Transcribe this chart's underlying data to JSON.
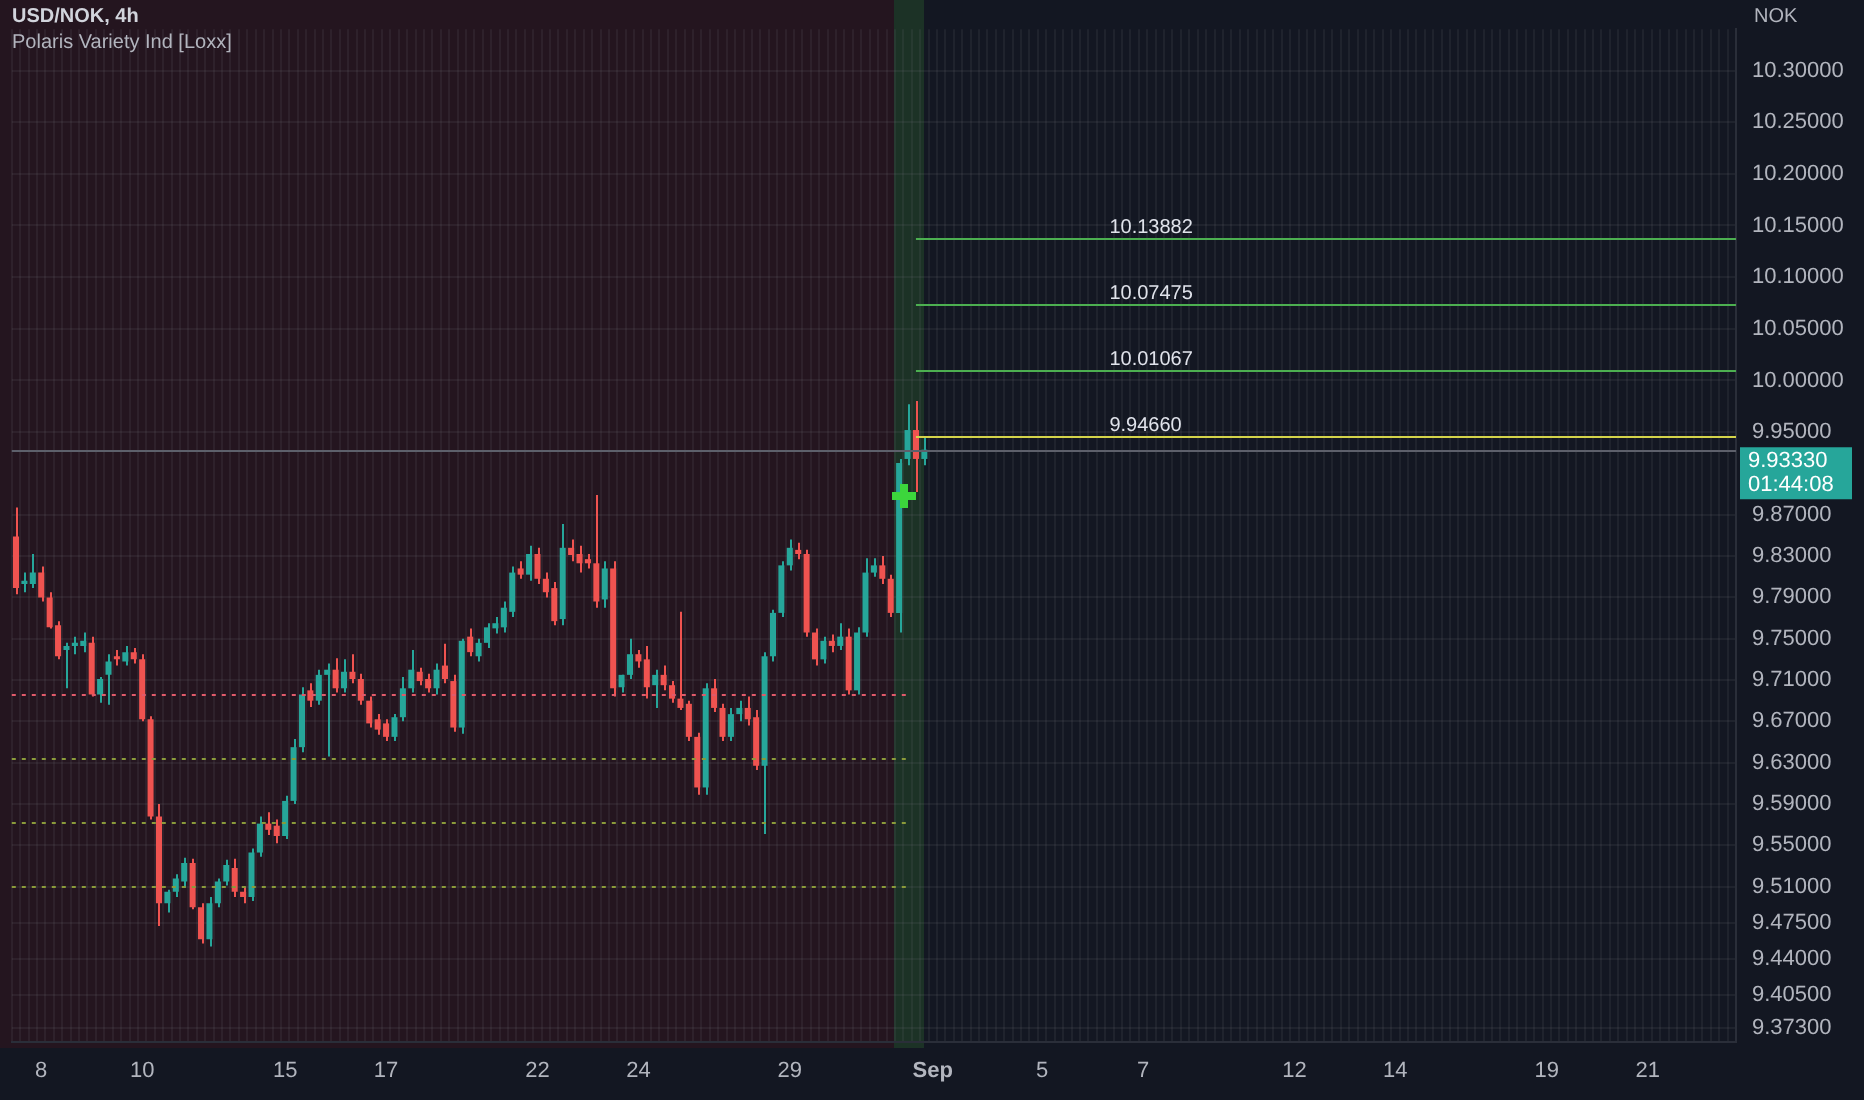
{
  "chart_data": {
    "type": "candlestick",
    "title": "USD/NOK, 4h",
    "subtitle": "Polaris Variety Ind [Loxx]",
    "ylabel": "NOK",
    "categories": [
      null,
      null,
      null,
      "8",
      null,
      null,
      null,
      null,
      null,
      null,
      null,
      null,
      null,
      null,
      null,
      "10",
      null,
      null,
      null,
      null,
      null,
      null,
      null,
      null,
      null,
      null,
      null,
      null,
      null,
      null,
      null,
      null,
      "15",
      null,
      null,
      null,
      null,
      null,
      null,
      null,
      null,
      null,
      null,
      null,
      "17",
      null,
      null,
      null,
      null,
      null,
      null,
      null,
      null,
      null,
      null,
      null,
      null,
      null,
      null,
      null,
      null,
      null,
      "22",
      null,
      null,
      null,
      null,
      null,
      null,
      null,
      null,
      null,
      null,
      null,
      "24",
      null,
      null,
      null,
      null,
      null,
      null,
      null,
      null,
      null,
      null,
      null,
      null,
      null,
      null,
      null,
      null,
      null,
      "29",
      null,
      null,
      null,
      null,
      null,
      null,
      null,
      null,
      null,
      null,
      null,
      null,
      null,
      null,
      null,
      null,
      "Sep",
      null,
      null,
      null,
      null,
      null,
      null,
      null,
      null,
      null,
      null,
      null,
      null,
      "5",
      null,
      null,
      null,
      null,
      null,
      null,
      null,
      null,
      null,
      null,
      null,
      "7",
      null,
      null,
      null,
      null,
      null,
      null,
      null,
      null,
      null,
      null,
      null,
      null,
      null,
      null,
      null,
      null,
      null,
      "12",
      null,
      null,
      null,
      null,
      null,
      null,
      null,
      null,
      null,
      null,
      null,
      "14",
      null,
      null,
      null,
      null,
      null,
      null,
      null,
      null,
      null,
      null,
      null,
      null,
      null,
      null,
      null,
      null,
      null,
      "19",
      null,
      null,
      null,
      null,
      null,
      null,
      null,
      null,
      null,
      null,
      null,
      "21",
      null,
      null,
      null,
      null,
      null,
      null,
      null,
      null,
      null,
      null
    ],
    "ohlc": [
      [
        9.849,
        9.877,
        9.793,
        9.799
      ],
      [
        9.803,
        9.814,
        9.795,
        9.806
      ],
      [
        9.803,
        9.832,
        9.799,
        9.814
      ],
      [
        9.814,
        9.82,
        9.786,
        9.79
      ],
      [
        9.79,
        9.795,
        9.76,
        9.761
      ],
      [
        9.763,
        9.767,
        9.73,
        9.733
      ],
      [
        9.739,
        9.746,
        9.702,
        9.743
      ],
      [
        9.743,
        9.752,
        9.735,
        9.746
      ],
      [
        9.743,
        9.756,
        9.737,
        9.748
      ],
      [
        9.746,
        9.752,
        9.694,
        9.696
      ],
      [
        9.696,
        9.713,
        9.688,
        9.711
      ],
      [
        9.715,
        9.735,
        9.686,
        9.728
      ],
      [
        9.733,
        9.739,
        9.724,
        9.73
      ],
      [
        9.728,
        9.743,
        9.724,
        9.737
      ],
      [
        9.737,
        9.741,
        9.726,
        9.73
      ],
      [
        9.73,
        9.735,
        9.67,
        9.672
      ],
      [
        9.672,
        9.675,
        9.575,
        9.578
      ],
      [
        9.578,
        9.59,
        9.472,
        9.494
      ],
      [
        9.494,
        9.507,
        9.485,
        9.505
      ],
      [
        9.505,
        9.522,
        9.5,
        9.518
      ],
      [
        9.515,
        9.538,
        9.509,
        9.533
      ],
      [
        9.533,
        9.537,
        9.488,
        9.49
      ],
      [
        9.49,
        9.494,
        9.455,
        9.459
      ],
      [
        9.459,
        9.5,
        9.452,
        9.494
      ],
      [
        9.494,
        9.518,
        9.49,
        9.515
      ],
      [
        9.515,
        9.536,
        9.511,
        9.531
      ],
      [
        9.528,
        9.537,
        9.5,
        9.505
      ],
      [
        9.505,
        9.51,
        9.494,
        9.5
      ],
      [
        9.5,
        9.547,
        9.496,
        9.543
      ],
      [
        9.543,
        9.578,
        9.539,
        9.571
      ],
      [
        9.571,
        9.582,
        9.56,
        9.565
      ],
      [
        9.569,
        9.575,
        9.552,
        9.559
      ],
      [
        9.559,
        9.598,
        9.556,
        9.593
      ],
      [
        9.593,
        9.653,
        9.59,
        9.645
      ],
      [
        9.645,
        9.703,
        9.64,
        9.696
      ],
      [
        9.7,
        9.707,
        9.684,
        9.69
      ],
      [
        9.69,
        9.72,
        9.686,
        9.715
      ],
      [
        9.715,
        9.726,
        9.636,
        9.72
      ],
      [
        9.72,
        9.731,
        9.698,
        9.702
      ],
      [
        9.702,
        9.73,
        9.698,
        9.718
      ],
      [
        9.718,
        9.735,
        9.707,
        9.711
      ],
      [
        9.711,
        9.716,
        9.686,
        9.69
      ],
      [
        9.69,
        9.694,
        9.664,
        9.668
      ],
      [
        9.672,
        9.677,
        9.657,
        9.662
      ],
      [
        9.668,
        9.672,
        9.651,
        9.655
      ],
      [
        9.655,
        9.677,
        9.651,
        9.674
      ],
      [
        9.674,
        9.713,
        9.67,
        9.702
      ],
      [
        9.702,
        9.739,
        9.698,
        9.72
      ],
      [
        9.718,
        9.722,
        9.705,
        9.709
      ],
      [
        9.711,
        9.716,
        9.698,
        9.702
      ],
      [
        9.702,
        9.726,
        9.696,
        9.72
      ],
      [
        9.724,
        9.745,
        9.707,
        9.711
      ],
      [
        9.709,
        9.715,
        9.66,
        9.664
      ],
      [
        9.664,
        9.75,
        9.658,
        9.748
      ],
      [
        9.752,
        9.76,
        9.733,
        9.737
      ],
      [
        9.733,
        9.75,
        9.728,
        9.746
      ],
      [
        9.746,
        9.765,
        9.741,
        9.761
      ],
      [
        9.76,
        9.771,
        9.755,
        9.765
      ],
      [
        9.761,
        9.786,
        9.756,
        9.78
      ],
      [
        9.776,
        9.82,
        9.771,
        9.814
      ],
      [
        9.818,
        9.825,
        9.808,
        9.812
      ],
      [
        9.812,
        9.84,
        9.806,
        9.832
      ],
      [
        9.832,
        9.838,
        9.803,
        9.808
      ],
      [
        9.808,
        9.814,
        9.79,
        9.795
      ],
      [
        9.799,
        9.805,
        9.763,
        9.767
      ],
      [
        9.769,
        9.861,
        9.763,
        9.838
      ],
      [
        9.838,
        9.846,
        9.825,
        9.831
      ],
      [
        9.832,
        9.84,
        9.814,
        9.823
      ],
      [
        9.827,
        9.832,
        9.818,
        9.823
      ],
      [
        9.823,
        9.889,
        9.78,
        9.786
      ],
      [
        9.788,
        9.825,
        9.78,
        9.818
      ],
      [
        9.818,
        9.825,
        9.694,
        9.702
      ],
      [
        9.703,
        9.715,
        9.698,
        9.715
      ],
      [
        9.715,
        9.75,
        9.711,
        9.735
      ],
      [
        9.735,
        9.739,
        9.722,
        9.728
      ],
      [
        9.73,
        9.743,
        9.692,
        9.703
      ],
      [
        9.705,
        9.72,
        9.683,
        9.715
      ],
      [
        9.715,
        9.724,
        9.7,
        9.705
      ],
      [
        9.705,
        9.709,
        9.688,
        9.692
      ],
      [
        9.692,
        9.776,
        9.681,
        9.683
      ],
      [
        9.687,
        9.69,
        9.651,
        9.655
      ],
      [
        9.655,
        9.659,
        9.599,
        9.606
      ],
      [
        9.606,
        9.707,
        9.599,
        9.702
      ],
      [
        9.702,
        9.711,
        9.679,
        9.683
      ],
      [
        9.683,
        9.687,
        9.651,
        9.655
      ],
      [
        9.655,
        9.683,
        9.651,
        9.677
      ],
      [
        9.677,
        9.69,
        9.67,
        9.683
      ],
      [
        9.683,
        9.694,
        9.666,
        9.672
      ],
      [
        9.674,
        9.681,
        9.623,
        9.627
      ],
      [
        9.627,
        9.737,
        9.561,
        9.733
      ],
      [
        9.733,
        9.778,
        9.728,
        9.775
      ],
      [
        9.775,
        9.825,
        9.771,
        9.821
      ],
      [
        9.821,
        9.846,
        9.816,
        9.838
      ],
      [
        9.836,
        9.843,
        9.827,
        9.832
      ],
      [
        9.832,
        9.836,
        9.752,
        9.756
      ],
      [
        9.756,
        9.76,
        9.724,
        9.73
      ],
      [
        9.73,
        9.752,
        9.726,
        9.748
      ],
      [
        9.748,
        9.754,
        9.737,
        9.743
      ],
      [
        9.743,
        9.765,
        9.739,
        9.752
      ],
      [
        9.752,
        9.76,
        9.696,
        9.7
      ],
      [
        9.7,
        9.761,
        9.696,
        9.756
      ],
      [
        9.756,
        9.828,
        9.752,
        9.814
      ],
      [
        9.814,
        9.828,
        9.81,
        9.821
      ],
      [
        9.821,
        9.83,
        9.803,
        9.808
      ],
      [
        9.808,
        9.812,
        9.771,
        9.775
      ],
      [
        9.775,
        9.924,
        9.756,
        9.92
      ],
      [
        9.924,
        9.977,
        9.918,
        9.952
      ],
      [
        9.952,
        9.98,
        9.892,
        9.924
      ],
      [
        9.924,
        9.946,
        9.918,
        9.933
      ],
      null,
      null,
      null,
      null,
      null,
      null,
      null,
      null,
      null,
      null,
      null,
      null,
      null,
      null,
      null,
      null,
      null,
      null,
      null,
      null,
      null,
      null,
      null,
      null,
      null,
      null,
      null,
      null,
      null,
      null,
      null,
      null,
      null,
      null,
      null,
      null,
      null,
      null,
      null,
      null,
      null,
      null,
      null,
      null,
      null,
      null,
      null,
      null,
      null,
      null,
      null,
      null,
      null,
      null,
      null,
      null,
      null,
      null,
      null,
      null,
      null,
      null,
      null,
      null,
      null,
      null,
      null,
      null,
      null,
      null,
      null,
      null,
      null,
      null,
      null,
      null,
      null,
      null,
      null,
      null,
      null,
      null,
      null,
      null,
      null,
      null,
      null,
      null,
      null,
      null,
      null,
      null,
      null,
      null,
      null,
      null
    ],
    "colors": [
      "#ef5350",
      "#26a69a",
      "#26a69a",
      "#ef5350",
      "#ef5350",
      "#ef5350",
      "#26a69a",
      "#26a69a",
      "#26a69a",
      "#ef5350",
      "#26a69a",
      "#26a69a",
      "#ef5350",
      "#26a69a",
      "#ef5350",
      "#ef5350",
      "#ef5350",
      "#ef5350",
      "#26a69a",
      "#26a69a",
      "#26a69a",
      "#ef5350",
      "#ef5350",
      "#26a69a",
      "#26a69a",
      "#26a69a",
      "#ef5350",
      "#ef5350",
      "#26a69a",
      "#26a69a",
      "#ef5350",
      "#ef5350",
      "#26a69a",
      "#26a69a",
      "#26a69a",
      "#ef5350",
      "#26a69a",
      "#26a69a",
      "#ef5350",
      "#26a69a",
      "#ef5350",
      "#ef5350",
      "#ef5350",
      "#ef5350",
      "#ef5350",
      "#26a69a",
      "#26a69a",
      "#26a69a",
      "#ef5350",
      "#ef5350",
      "#26a69a",
      "#ef5350",
      "#ef5350",
      "#26a69a",
      "#ef5350",
      "#26a69a",
      "#26a69a",
      "#26a69a",
      "#26a69a",
      "#26a69a",
      "#ef5350",
      "#26a69a",
      "#ef5350",
      "#ef5350",
      "#ef5350",
      "#26a69a",
      "#ef5350",
      "#ef5350",
      "#ef5350",
      "#ef5350",
      "#26a69a",
      "#ef5350",
      "#26a69a",
      "#26a69a",
      "#ef5350",
      "#ef5350",
      "#26a69a",
      "#ef5350",
      "#ef5350",
      "#ef5350",
      "#ef5350",
      "#ef5350",
      "#26a69a",
      "#ef5350",
      "#ef5350",
      "#26a69a",
      "#26a69a",
      "#ef5350",
      "#ef5350",
      "#26a69a",
      "#26a69a",
      "#26a69a",
      "#26a69a",
      "#ef5350",
      "#ef5350",
      "#ef5350",
      "#26a69a",
      "#ef5350",
      "#26a69a",
      "#ef5350",
      "#26a69a",
      "#26a69a",
      "#26a69a",
      "#ef5350",
      "#ef5350",
      "#26a69a",
      "#26a69a",
      "#ef5350",
      "#26a69a",
      null,
      null,
      null,
      null,
      null,
      null,
      null,
      null,
      null,
      null,
      null,
      null,
      null,
      null,
      null,
      null,
      null,
      null,
      null,
      null,
      null,
      null,
      null,
      null,
      null,
      null,
      null,
      null,
      null,
      null,
      null,
      null,
      null,
      null,
      null,
      null,
      null,
      null,
      null,
      null,
      null,
      null,
      null,
      null,
      null,
      null,
      null,
      null,
      null,
      null,
      null,
      null,
      null,
      null,
      null,
      null,
      null,
      null,
      null,
      null,
      null,
      null,
      null,
      null,
      null,
      null,
      null,
      null,
      null,
      null,
      null,
      null,
      null,
      null,
      null,
      null,
      null,
      null,
      null,
      null,
      null,
      null,
      null,
      null,
      null,
      null,
      null,
      null,
      null,
      null,
      null,
      null,
      null,
      null,
      null,
      null
    ],
    "ylim": [
      9.36,
      10.34
    ],
    "yticks": [
      {
        "value": 9.373,
        "label": "9.37300"
      },
      {
        "value": 9.405,
        "label": "9.40500"
      },
      {
        "value": 9.44,
        "label": "9.44000"
      },
      {
        "value": 9.475,
        "label": "9.47500"
      },
      {
        "value": 9.51,
        "label": "9.51000"
      },
      {
        "value": 9.55,
        "label": "9.55000"
      },
      {
        "value": 9.59,
        "label": "9.59000"
      },
      {
        "value": 9.63,
        "label": "9.63000"
      },
      {
        "value": 9.67,
        "label": "9.67000"
      },
      {
        "value": 9.71,
        "label": "9.71000"
      },
      {
        "value": 9.75,
        "label": "9.75000"
      },
      {
        "value": 9.79,
        "label": "9.79000"
      },
      {
        "value": 9.83,
        "label": "9.83000"
      },
      {
        "value": 9.87,
        "label": "9.87000"
      },
      {
        "value": 9.95,
        "label": "9.95000"
      },
      {
        "value": 10.0,
        "label": "10.00000"
      },
      {
        "value": 10.05,
        "label": "10.05000"
      },
      {
        "value": 10.1,
        "label": "10.10000"
      },
      {
        "value": 10.15,
        "label": "10.15000"
      },
      {
        "value": 10.2,
        "label": "10.20000"
      },
      {
        "value": 10.25,
        "label": "10.25000"
      },
      {
        "value": 10.3,
        "label": "10.30000"
      }
    ],
    "grid": true,
    "ref_lines": [
      {
        "axis": "y",
        "value": 10.13882,
        "label": "10.13882",
        "color": "#4caf50",
        "line_style": "solid"
      },
      {
        "axis": "y",
        "value": 10.07475,
        "label": "10.07475",
        "color": "#4caf50",
        "line_style": "solid"
      },
      {
        "axis": "y",
        "value": 10.01067,
        "label": "10.01067",
        "color": "#4caf50",
        "line_style": "solid"
      },
      {
        "axis": "y",
        "value": 9.9466,
        "label": "9.94660",
        "color": "#d4d44a",
        "line_style": "solid"
      },
      {
        "axis": "y",
        "value": 9.9333,
        "label": "9.93330",
        "color": "#5d606b"
      },
      {
        "axis": "y",
        "value": 9.696,
        "color": "#e05a6a",
        "line_style": "dotted"
      },
      {
        "axis": "y",
        "value": 9.634,
        "color": "#8a9a3a",
        "line_style": "dotted"
      },
      {
        "axis": "y",
        "value": 9.572,
        "color": "#8a9a3a",
        "line_style": "dotted"
      },
      {
        "axis": "y",
        "value": 9.511,
        "color": "#8a9a3a",
        "line_style": "dotted"
      }
    ],
    "annotations": [
      "01:44:08"
    ]
  }
}
